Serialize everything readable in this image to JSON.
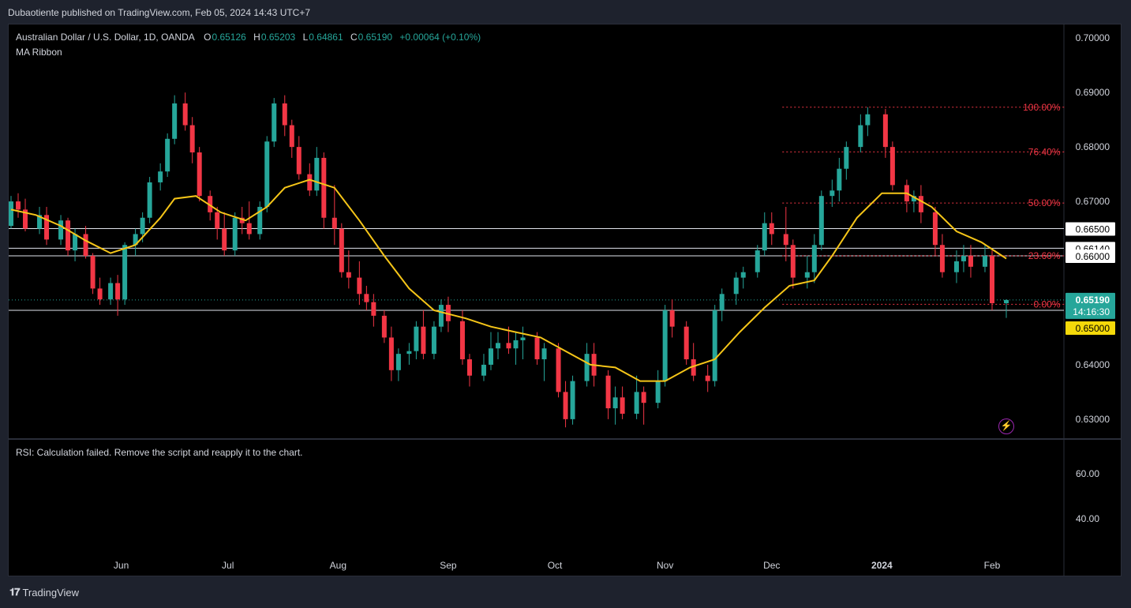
{
  "header": {
    "publisher": "Dubaotiente published on TradingView.com, Feb 05, 2024 14:43 UTC+7"
  },
  "legend": {
    "symbol": "Australian Dollar / U.S. Dollar, 1D, OANDA",
    "o_label": "O",
    "o": "0.65126",
    "h_label": "H",
    "h": "0.65203",
    "l_label": "L",
    "l": "0.64861",
    "c_label": "C",
    "c": "0.65190",
    "change": "+0.00064 (+0.10%)",
    "indicator": "MA Ribbon"
  },
  "rsi": {
    "message": "RSI: Calculation failed. Remove the script and reapply it to the chart.",
    "ticks": [
      "60.00",
      "40.00"
    ]
  },
  "footer": {
    "brand": "TradingView"
  },
  "icons": {
    "bolt": "lightning-icon",
    "logo": "tradingview-logo-icon"
  },
  "colors": {
    "up": "#26a69a",
    "down": "#f23645",
    "ma": "#f5c518",
    "fib": "#f23645",
    "price_badge": "#26a69a",
    "level_badge": "#f5d90a"
  },
  "chart_data": {
    "type": "candlestick",
    "symbol": "AUDUSD",
    "timeframe": "1D",
    "x_labels": [
      {
        "label": "Jun",
        "date": "2023-06-01"
      },
      {
        "label": "Jul",
        "date": "2023-07-01"
      },
      {
        "label": "Aug",
        "date": "2023-08-01"
      },
      {
        "label": "Sep",
        "date": "2023-09-01"
      },
      {
        "label": "Oct",
        "date": "2023-10-01"
      },
      {
        "label": "Nov",
        "date": "2023-11-01"
      },
      {
        "label": "Dec",
        "date": "2023-12-01"
      },
      {
        "label": "2024",
        "date": "2024-01-01"
      },
      {
        "label": "Feb",
        "date": "2024-02-01"
      }
    ],
    "y_ticks": [
      "0.70000",
      "0.69000",
      "0.68000",
      "0.67000",
      "0.64000",
      "0.63000"
    ],
    "ylim": [
      0.6265,
      0.7025
    ],
    "horizontal_levels": [
      {
        "value": 0.665,
        "label": "0.66500"
      },
      {
        "value": 0.6614,
        "label": "0.66140"
      },
      {
        "value": 0.66,
        "label": "0.66000"
      },
      {
        "value": 0.65,
        "label": "0.65000"
      }
    ],
    "last_price": {
      "value": 0.6519,
      "label": "0.65190",
      "countdown": "14:16:30"
    },
    "fibonacci": [
      {
        "ratio": "100.00%",
        "value": 0.6873
      },
      {
        "ratio": "76.40%",
        "value": 0.6791
      },
      {
        "ratio": "50.00%",
        "value": 0.6697
      },
      {
        "ratio": "23.60%",
        "value": 0.66
      },
      {
        "ratio": "0.00%",
        "value": 0.6511
      }
    ],
    "fib_range": {
      "from": "2023-12-04",
      "to": "2024-02-08"
    },
    "ma_series": [
      [
        "2023-05-01",
        0.6685
      ],
      [
        "2023-05-08",
        0.6675
      ],
      [
        "2023-05-15",
        0.6655
      ],
      [
        "2023-05-22",
        0.6628
      ],
      [
        "2023-05-29",
        0.6605
      ],
      [
        "2023-06-05",
        0.662
      ],
      [
        "2023-06-12",
        0.667
      ],
      [
        "2023-06-16",
        0.6705
      ],
      [
        "2023-06-22",
        0.671
      ],
      [
        "2023-06-29",
        0.668
      ],
      [
        "2023-07-06",
        0.6665
      ],
      [
        "2023-07-12",
        0.669
      ],
      [
        "2023-07-17",
        0.6725
      ],
      [
        "2023-07-24",
        0.674
      ],
      [
        "2023-07-31",
        0.6725
      ],
      [
        "2023-08-07",
        0.6665
      ],
      [
        "2023-08-14",
        0.66
      ],
      [
        "2023-08-21",
        0.654
      ],
      [
        "2023-08-28",
        0.65
      ],
      [
        "2023-09-06",
        0.6485
      ],
      [
        "2023-09-13",
        0.647
      ],
      [
        "2023-09-20",
        0.646
      ],
      [
        "2023-09-27",
        0.645
      ],
      [
        "2023-10-04",
        0.6425
      ],
      [
        "2023-10-11",
        0.64
      ],
      [
        "2023-10-18",
        0.6395
      ],
      [
        "2023-10-25",
        0.637
      ],
      [
        "2023-11-01",
        0.637
      ],
      [
        "2023-11-08",
        0.6395
      ],
      [
        "2023-11-15",
        0.641
      ],
      [
        "2023-11-22",
        0.646
      ],
      [
        "2023-11-29",
        0.6505
      ],
      [
        "2023-12-06",
        0.6545
      ],
      [
        "2023-12-13",
        0.6555
      ],
      [
        "2023-12-18",
        0.66
      ],
      [
        "2023-12-25",
        0.667
      ],
      [
        "2024-01-01",
        0.6715
      ],
      [
        "2024-01-08",
        0.6715
      ],
      [
        "2024-01-15",
        0.669
      ],
      [
        "2024-01-22",
        0.6645
      ],
      [
        "2024-01-29",
        0.6625
      ],
      [
        "2024-02-05",
        0.6595
      ]
    ],
    "candles": [
      [
        "2023-05-01",
        0.6655,
        0.671,
        0.665,
        0.67
      ],
      [
        "2023-05-03",
        0.67,
        0.6715,
        0.667,
        0.6685
      ],
      [
        "2023-05-05",
        0.6685,
        0.6705,
        0.6645,
        0.665
      ],
      [
        "2023-05-09",
        0.665,
        0.669,
        0.664,
        0.6675
      ],
      [
        "2023-05-11",
        0.6675,
        0.669,
        0.662,
        0.663
      ],
      [
        "2023-05-15",
        0.663,
        0.6675,
        0.662,
        0.6665
      ],
      [
        "2023-05-17",
        0.6665,
        0.667,
        0.66,
        0.661
      ],
      [
        "2023-05-19",
        0.661,
        0.665,
        0.659,
        0.664
      ],
      [
        "2023-05-22",
        0.664,
        0.6655,
        0.6595,
        0.66
      ],
      [
        "2023-05-24",
        0.66,
        0.6605,
        0.653,
        0.654
      ],
      [
        "2023-05-26",
        0.654,
        0.656,
        0.651,
        0.652
      ],
      [
        "2023-05-29",
        0.652,
        0.656,
        0.651,
        0.655
      ],
      [
        "2023-05-31",
        0.655,
        0.6565,
        0.649,
        0.652
      ],
      [
        "2023-06-02",
        0.652,
        0.6625,
        0.651,
        0.662
      ],
      [
        "2023-06-05",
        0.662,
        0.665,
        0.66,
        0.664
      ],
      [
        "2023-06-07",
        0.664,
        0.668,
        0.6625,
        0.667
      ],
      [
        "2023-06-09",
        0.667,
        0.6745,
        0.666,
        0.6735
      ],
      [
        "2023-06-12",
        0.6735,
        0.677,
        0.672,
        0.6755
      ],
      [
        "2023-06-14",
        0.6755,
        0.6825,
        0.6745,
        0.6815
      ],
      [
        "2023-06-16",
        0.6815,
        0.6895,
        0.6805,
        0.688
      ],
      [
        "2023-06-19",
        0.688,
        0.69,
        0.683,
        0.684
      ],
      [
        "2023-06-21",
        0.684,
        0.6855,
        0.677,
        0.679
      ],
      [
        "2023-06-23",
        0.679,
        0.68,
        0.67,
        0.671
      ],
      [
        "2023-06-26",
        0.671,
        0.672,
        0.6665,
        0.668
      ],
      [
        "2023-06-28",
        0.668,
        0.669,
        0.663,
        0.665
      ],
      [
        "2023-06-30",
        0.665,
        0.668,
        0.66,
        0.661
      ],
      [
        "2023-07-03",
        0.661,
        0.668,
        0.66,
        0.667
      ],
      [
        "2023-07-05",
        0.667,
        0.669,
        0.664,
        0.666
      ],
      [
        "2023-07-07",
        0.666,
        0.67,
        0.663,
        0.664
      ],
      [
        "2023-07-10",
        0.664,
        0.67,
        0.663,
        0.669
      ],
      [
        "2023-07-12",
        0.669,
        0.682,
        0.668,
        0.681
      ],
      [
        "2023-07-14",
        0.681,
        0.689,
        0.68,
        0.688
      ],
      [
        "2023-07-17",
        0.688,
        0.6895,
        0.682,
        0.684
      ],
      [
        "2023-07-19",
        0.684,
        0.685,
        0.678,
        0.68
      ],
      [
        "2023-07-21",
        0.68,
        0.682,
        0.674,
        0.675
      ],
      [
        "2023-07-24",
        0.675,
        0.677,
        0.671,
        0.672
      ],
      [
        "2023-07-26",
        0.672,
        0.68,
        0.671,
        0.678
      ],
      [
        "2023-07-28",
        0.678,
        0.679,
        0.665,
        0.667
      ],
      [
        "2023-07-31",
        0.667,
        0.673,
        0.662,
        0.665
      ],
      [
        "2023-08-02",
        0.665,
        0.666,
        0.656,
        0.657
      ],
      [
        "2023-08-04",
        0.657,
        0.661,
        0.654,
        0.656
      ],
      [
        "2023-08-07",
        0.656,
        0.659,
        0.651,
        0.653
      ],
      [
        "2023-08-09",
        0.653,
        0.6545,
        0.65,
        0.6515
      ],
      [
        "2023-08-11",
        0.6515,
        0.653,
        0.647,
        0.649
      ],
      [
        "2023-08-14",
        0.649,
        0.65,
        0.644,
        0.645
      ],
      [
        "2023-08-16",
        0.645,
        0.647,
        0.637,
        0.639
      ],
      [
        "2023-08-18",
        0.639,
        0.643,
        0.637,
        0.642
      ],
      [
        "2023-08-21",
        0.642,
        0.644,
        0.64,
        0.6425
      ],
      [
        "2023-08-23",
        0.6425,
        0.648,
        0.641,
        0.647
      ],
      [
        "2023-08-25",
        0.647,
        0.65,
        0.641,
        0.642
      ],
      [
        "2023-08-28",
        0.642,
        0.648,
        0.641,
        0.647
      ],
      [
        "2023-08-30",
        0.647,
        0.652,
        0.646,
        0.651
      ],
      [
        "2023-09-01",
        0.651,
        0.6525,
        0.646,
        0.648
      ],
      [
        "2023-09-05",
        0.648,
        0.65,
        0.64,
        0.641
      ],
      [
        "2023-09-07",
        0.641,
        0.642,
        0.636,
        0.638
      ],
      [
        "2023-09-11",
        0.638,
        0.642,
        0.637,
        0.64
      ],
      [
        "2023-09-13",
        0.64,
        0.646,
        0.639,
        0.643
      ],
      [
        "2023-09-15",
        0.643,
        0.646,
        0.641,
        0.644
      ],
      [
        "2023-09-18",
        0.644,
        0.647,
        0.642,
        0.643
      ],
      [
        "2023-09-20",
        0.643,
        0.646,
        0.64,
        0.6445
      ],
      [
        "2023-09-22",
        0.6445,
        0.647,
        0.641,
        0.645
      ],
      [
        "2023-09-26",
        0.645,
        0.646,
        0.64,
        0.641
      ],
      [
        "2023-09-28",
        0.641,
        0.644,
        0.637,
        0.643
      ],
      [
        "2023-10-02",
        0.643,
        0.644,
        0.634,
        0.635
      ],
      [
        "2023-10-04",
        0.635,
        0.637,
        0.6285,
        0.63
      ],
      [
        "2023-10-06",
        0.63,
        0.638,
        0.629,
        0.637
      ],
      [
        "2023-10-10",
        0.637,
        0.644,
        0.636,
        0.642
      ],
      [
        "2023-10-12",
        0.642,
        0.644,
        0.636,
        0.638
      ],
      [
        "2023-10-16",
        0.638,
        0.639,
        0.63,
        0.632
      ],
      [
        "2023-10-18",
        0.632,
        0.636,
        0.629,
        0.634
      ],
      [
        "2023-10-20",
        0.634,
        0.636,
        0.63,
        0.631
      ],
      [
        "2023-10-24",
        0.631,
        0.638,
        0.63,
        0.635
      ],
      [
        "2023-10-26",
        0.635,
        0.636,
        0.629,
        0.633
      ],
      [
        "2023-10-30",
        0.633,
        0.639,
        0.632,
        0.637
      ],
      [
        "2023-11-01",
        0.637,
        0.651,
        0.636,
        0.65
      ],
      [
        "2023-11-03",
        0.65,
        0.652,
        0.645,
        0.647
      ],
      [
        "2023-11-07",
        0.647,
        0.648,
        0.64,
        0.641
      ],
      [
        "2023-11-09",
        0.641,
        0.644,
        0.637,
        0.638
      ],
      [
        "2023-11-13",
        0.638,
        0.64,
        0.635,
        0.637
      ],
      [
        "2023-11-15",
        0.637,
        0.651,
        0.636,
        0.65
      ],
      [
        "2023-11-17",
        0.65,
        0.654,
        0.648,
        0.653
      ],
      [
        "2023-11-21",
        0.653,
        0.657,
        0.651,
        0.656
      ],
      [
        "2023-11-23",
        0.656,
        0.658,
        0.654,
        0.657
      ],
      [
        "2023-11-27",
        0.657,
        0.662,
        0.656,
        0.661
      ],
      [
        "2023-11-29",
        0.661,
        0.668,
        0.66,
        0.666
      ],
      [
        "2023-12-01",
        0.666,
        0.668,
        0.662,
        0.664
      ],
      [
        "2023-12-05",
        0.664,
        0.669,
        0.659,
        0.662
      ],
      [
        "2023-12-07",
        0.662,
        0.663,
        0.654,
        0.656
      ],
      [
        "2023-12-11",
        0.656,
        0.66,
        0.654,
        0.657
      ],
      [
        "2023-12-13",
        0.657,
        0.664,
        0.655,
        0.662
      ],
      [
        "2023-12-15",
        0.662,
        0.672,
        0.661,
        0.671
      ],
      [
        "2023-12-18",
        0.671,
        0.674,
        0.669,
        0.672
      ],
      [
        "2023-12-20",
        0.672,
        0.678,
        0.67,
        0.676
      ],
      [
        "2023-12-22",
        0.676,
        0.681,
        0.674,
        0.68
      ],
      [
        "2023-12-26",
        0.68,
        0.686,
        0.679,
        0.684
      ],
      [
        "2023-12-28",
        0.684,
        0.6873,
        0.682,
        0.686
      ],
      [
        "2024-01-02",
        0.686,
        0.687,
        0.678,
        0.68
      ],
      [
        "2024-01-04",
        0.68,
        0.681,
        0.672,
        0.673
      ],
      [
        "2024-01-08",
        0.673,
        0.674,
        0.668,
        0.67
      ],
      [
        "2024-01-10",
        0.67,
        0.672,
        0.668,
        0.671
      ],
      [
        "2024-01-12",
        0.671,
        0.673,
        0.666,
        0.668
      ],
      [
        "2024-01-16",
        0.668,
        0.669,
        0.66,
        0.662
      ],
      [
        "2024-01-18",
        0.662,
        0.664,
        0.656,
        0.657
      ],
      [
        "2024-01-22",
        0.657,
        0.661,
        0.655,
        0.659
      ],
      [
        "2024-01-24",
        0.659,
        0.662,
        0.657,
        0.66
      ],
      [
        "2024-01-26",
        0.66,
        0.662,
        0.656,
        0.658
      ],
      [
        "2024-01-30",
        0.658,
        0.662,
        0.657,
        0.66
      ],
      [
        "2024-02-01",
        0.66,
        0.661,
        0.65,
        0.6513
      ],
      [
        "2024-02-05",
        0.6513,
        0.652,
        0.6486,
        0.6519
      ]
    ]
  }
}
